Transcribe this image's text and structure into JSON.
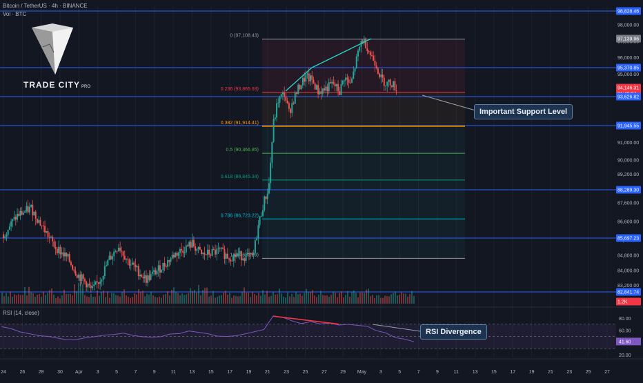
{
  "header": {
    "symbol_line": "Bitcoin / TetherUS · 4h · BINANCE",
    "volume_line": "Vol · BTC",
    "rsi_label": "RSI (14, close)"
  },
  "logo": {
    "name": "TRADE CITY",
    "suffix": "PRO"
  },
  "colors": {
    "background": "#131722",
    "bull": "#26a69a",
    "bear": "#ef5350",
    "horizontal_level": "#2962ff",
    "fib_0": "#9598a1",
    "fib_0236": "#f23645",
    "fib_0382": "#ff9800",
    "fib_05": "#4caf50",
    "fib_0618": "#089981",
    "fib_0786": "#00bcd4",
    "trendline": "#22d3c5",
    "divergence": "#f23645",
    "rsi_line": "#7e57c2"
  },
  "callouts": {
    "support": "Important Support Level",
    "divergence": "RSI Divergence"
  },
  "chart_data": {
    "type": "candlestick",
    "title": "Bitcoin / TetherUS · 4h · BINANCE",
    "ylim": [
      82400,
      99000
    ],
    "y_scale": "log",
    "x_tick_labels": [
      "24",
      "26",
      "28",
      "30",
      "Apr",
      "3",
      "5",
      "7",
      "9",
      "11",
      "13",
      "15",
      "17",
      "19",
      "21",
      "23",
      "25",
      "27",
      "29",
      "May",
      "3",
      "5",
      "7",
      "9",
      "11",
      "13",
      "15",
      "17",
      "19",
      "21",
      "23",
      "25",
      "27"
    ],
    "y_tick_labels": [
      "98,000.00",
      "97,000.00",
      "96,000.00",
      "95,000.00",
      "94,000.00",
      "92,000.00",
      "91,000.00",
      "90,000.00",
      "89,200.00",
      "88,400.00",
      "87,600.00",
      "86,600.00",
      "85,600.00",
      "84,800.00",
      "84,000.00",
      "83,200.00",
      "82,400.00"
    ],
    "price_tags": [
      {
        "value": "98,828.46",
        "kind": "level"
      },
      {
        "value": "97,139.96",
        "kind": "fib"
      },
      {
        "value": "95,370.85",
        "kind": "level"
      },
      {
        "value": "94,146.31",
        "kind": "current",
        "countdown": "01:49:24"
      },
      {
        "value": "93,626.82",
        "kind": "level"
      },
      {
        "value": "91,945.55",
        "kind": "level"
      },
      {
        "value": "88,289.30",
        "kind": "level"
      },
      {
        "value": "85,697.23",
        "kind": "level"
      },
      {
        "value": "82,841.74",
        "kind": "level"
      },
      {
        "value": "1.2K",
        "kind": "volume"
      }
    ],
    "horizontal_levels": [
      98828.46,
      95370.85,
      93626.82,
      91945.55,
      88289.3,
      85697.23,
      82841.74
    ],
    "fib_retracement": [
      {
        "ratio": "0",
        "label": "0 (97,108.43)",
        "price": 97108.43
      },
      {
        "ratio": "0.236",
        "label": "0.236 (93,865.93)",
        "price": 93865.93
      },
      {
        "ratio": "0.382",
        "label": "0.382 (91,914.41)",
        "price": 91914.41
      },
      {
        "ratio": "0.5",
        "label": "0.5 (90,366.85)",
        "price": 90366.85
      },
      {
        "ratio": "0.618",
        "label": "0.618 (88,845.34)",
        "price": 88845.34
      },
      {
        "ratio": "0.786",
        "label": "0.786 (86,723.22)",
        "price": 86723.22
      },
      {
        "ratio": "1",
        "label": "1 (84,623.29)",
        "price": 84623.29
      }
    ],
    "price_path": [
      [
        0,
        85900
      ],
      [
        1.5,
        86900
      ],
      [
        3,
        87300
      ],
      [
        4,
        86500
      ],
      [
        5.5,
        85300
      ],
      [
        7,
        84600
      ],
      [
        8,
        83800
      ],
      [
        9,
        83300
      ],
      [
        9.6,
        82900
      ],
      [
        10.5,
        83500
      ],
      [
        11.5,
        84600
      ],
      [
        12.5,
        85300
      ],
      [
        13.5,
        84500
      ],
      [
        14.5,
        84000
      ],
      [
        15.5,
        83500
      ],
      [
        16.5,
        83900
      ],
      [
        17.5,
        84300
      ],
      [
        18.5,
        84800
      ],
      [
        19.5,
        85100
      ],
      [
        20.5,
        85400
      ],
      [
        21.5,
        84800
      ],
      [
        22.5,
        84900
      ],
      [
        23.5,
        85000
      ],
      [
        24.5,
        84700
      ],
      [
        25.5,
        84800
      ],
      [
        26.5,
        84700
      ],
      [
        27.1,
        84650
      ],
      [
        27.6,
        86200
      ],
      [
        28.2,
        87500
      ],
      [
        28.8,
        88400
      ],
      [
        29.3,
        92000
      ],
      [
        29.8,
        93400
      ],
      [
        30.5,
        93800
      ],
      [
        31,
        92700
      ],
      [
        31.6,
        93600
      ],
      [
        32.2,
        94300
      ],
      [
        32.8,
        94800
      ],
      [
        33.5,
        94600
      ],
      [
        34.2,
        93900
      ],
      [
        35,
        94100
      ],
      [
        35.8,
        94400
      ],
      [
        36.5,
        93900
      ],
      [
        37,
        94800
      ],
      [
        37.7,
        94300
      ],
      [
        38.4,
        96000
      ],
      [
        38.9,
        97100
      ],
      [
        39.4,
        96800
      ],
      [
        39.8,
        96200
      ],
      [
        40.4,
        95700
      ],
      [
        41,
        94700
      ],
      [
        41.6,
        94400
      ],
      [
        42.1,
        94500
      ],
      [
        42.5,
        94200
      ],
      [
        42.8,
        94146
      ]
    ],
    "volume_profile": [
      0.45,
      0.3,
      0.5,
      0.35,
      0.6,
      0.25,
      0.4,
      0.7,
      0.3,
      0.5,
      0.35,
      0.45,
      0.3,
      0.55,
      0.4,
      0.35,
      0.5,
      0.3,
      0.45,
      0.6,
      0.35,
      0.4,
      0.3,
      0.5,
      0.35,
      0.4,
      0.45,
      0.3,
      0.35,
      0.5,
      0.4,
      0.3,
      0.45,
      0.35,
      0.4,
      0.55,
      0.3,
      0.45,
      0.35,
      0.4
    ],
    "rsi": {
      "label": "RSI (14, close)",
      "ylim": [
        20,
        90
      ],
      "tick_labels": [
        "80.00",
        "60.00",
        "20.00"
      ],
      "current": "41.60",
      "values": [
        66,
        62,
        58,
        55,
        52,
        50,
        48,
        46,
        44,
        47,
        50,
        53,
        55,
        54,
        51,
        49,
        48,
        50,
        52,
        55,
        58,
        57,
        55,
        52,
        50,
        53,
        56,
        58,
        60,
        82,
        80,
        77,
        73,
        72,
        71,
        70,
        69,
        68,
        70,
        67,
        60,
        55,
        48,
        44,
        42
      ]
    }
  }
}
